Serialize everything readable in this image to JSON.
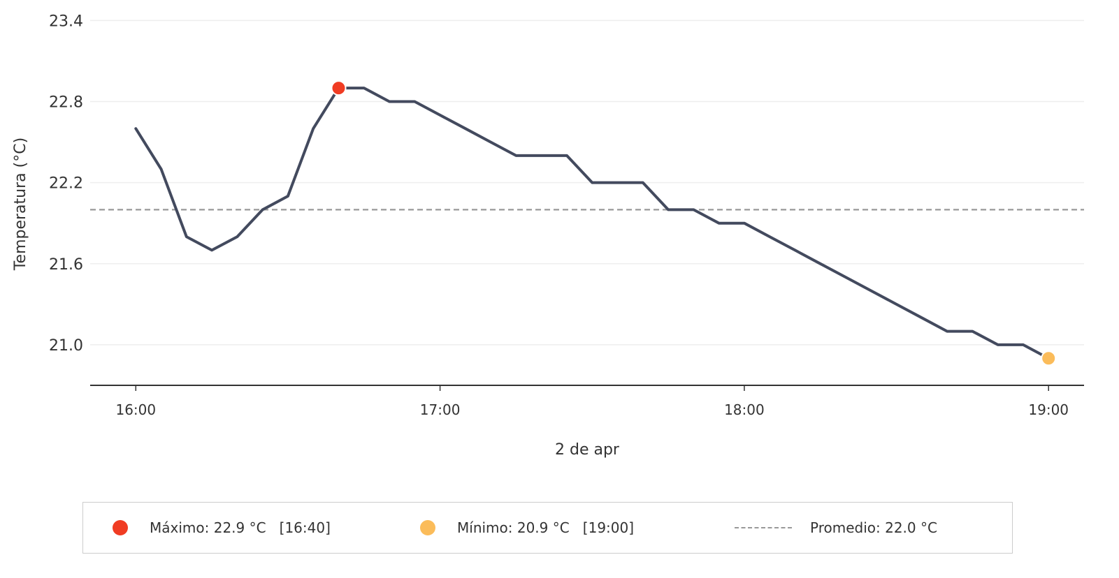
{
  "chart_data": {
    "type": "line",
    "xlabel": "2 de apr",
    "ylabel": "Temperatura (°C)",
    "x_ticks": [
      "16:00",
      "17:00",
      "18:00",
      "19:00"
    ],
    "y_ticks": [
      "21.0",
      "21.6",
      "22.2",
      "22.8",
      "23.4"
    ],
    "xlim_minutes": [
      -9,
      187
    ],
    "ylim": [
      20.7,
      23.5
    ],
    "grid": "horizontal",
    "series": [
      {
        "color": "#434a5e",
        "x": [
          "16:00",
          "16:05",
          "16:10",
          "16:15",
          "16:20",
          "16:25",
          "16:30",
          "16:35",
          "16:40",
          "16:45",
          "16:50",
          "16:55",
          "17:00",
          "17:05",
          "17:10",
          "17:15",
          "17:20",
          "17:25",
          "17:30",
          "17:35",
          "17:40",
          "17:45",
          "17:50",
          "17:55",
          "18:00",
          "18:05",
          "18:10",
          "18:15",
          "18:20",
          "18:25",
          "18:30",
          "18:35",
          "18:40",
          "18:45",
          "18:50",
          "18:55",
          "19:00"
        ],
        "values": [
          22.6,
          22.3,
          21.8,
          21.7,
          21.8,
          22.0,
          22.1,
          22.6,
          22.9,
          22.9,
          22.8,
          22.8,
          22.7,
          22.6,
          22.5,
          22.4,
          22.4,
          22.4,
          22.2,
          22.2,
          22.2,
          22.0,
          22.0,
          21.9,
          21.9,
          21.8,
          21.7,
          21.6,
          21.5,
          21.4,
          21.3,
          21.2,
          21.1,
          21.1,
          21.0,
          21.0,
          20.9
        ]
      }
    ],
    "max_point": {
      "x": "16:40",
      "value": 22.9,
      "color": "#f03c23"
    },
    "min_point": {
      "x": "19:00",
      "value": 20.9,
      "color": "#fbbc5a"
    },
    "average": {
      "value": 22.0,
      "color": "#999999"
    }
  },
  "legend": {
    "max_label": "Máximo: 22.9 °C   [16:40]",
    "min_label": "Mínimo: 20.9 °C   [19:00]",
    "avg_label": "Promedio: 22.0 °C"
  }
}
